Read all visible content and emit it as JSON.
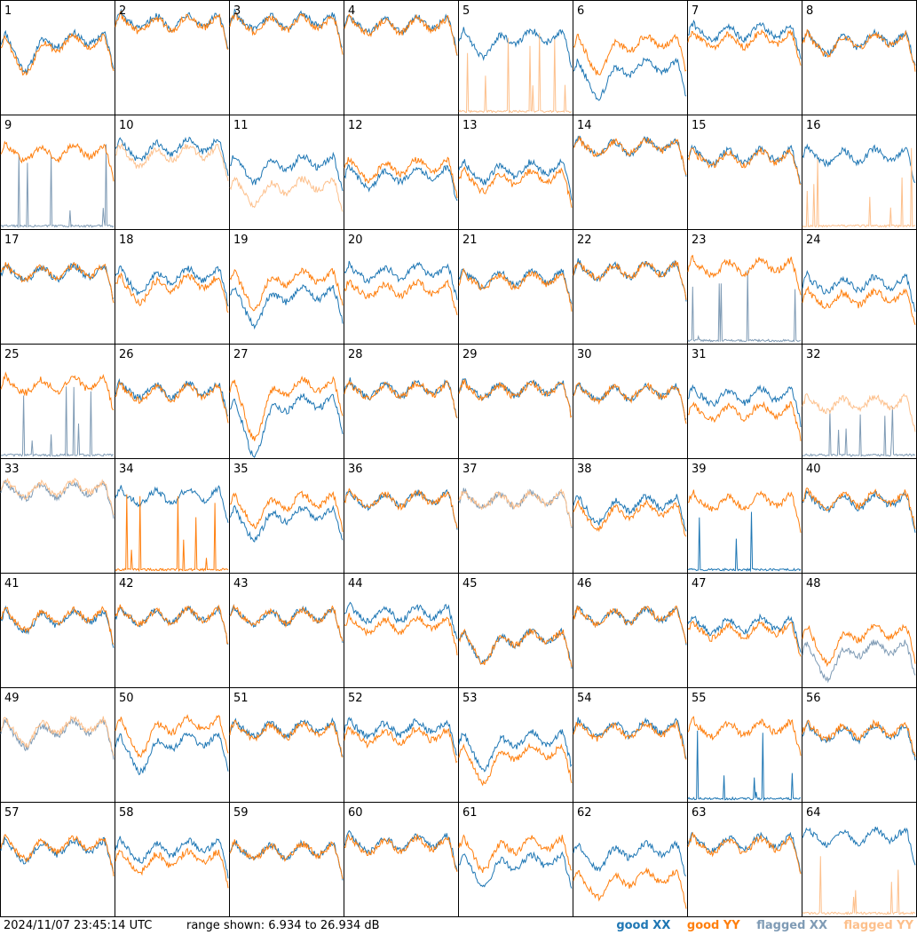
{
  "footer": {
    "timestamp": "2024/11/07 23:45:14 UTC",
    "range_text": "range shown: 6.934 to 26.934 dB"
  },
  "legend": [
    {
      "key": "good_xx",
      "label": "good XX",
      "color": "#1f77b4"
    },
    {
      "key": "good_yy",
      "label": "good YY",
      "color": "#ff7f0e"
    },
    {
      "key": "flagged_xx",
      "label": "flagged XX",
      "color": "#7f9bb5"
    },
    {
      "key": "flagged_yy",
      "label": "flagged YY",
      "color": "#fdc08c"
    }
  ],
  "chart_data": {
    "type": "line",
    "layout": "8x8 small multiples, one panel per antenna",
    "grid": false,
    "ylim": [
      6.934,
      26.934
    ],
    "yunits": "dB",
    "panels": [
      {
        "id": "1",
        "xx": "good",
        "yy": "good",
        "xx_level": 0.63,
        "yy_level": 0.6,
        "dip": 0.2
      },
      {
        "id": "2",
        "xx": "good",
        "yy": "good",
        "xx_level": 0.8,
        "yy_level": 0.78,
        "dip": 0.0
      },
      {
        "id": "3",
        "xx": "good",
        "yy": "good",
        "xx_level": 0.8,
        "yy_level": 0.78,
        "dip": 0.0
      },
      {
        "id": "4",
        "xx": "good",
        "yy": "good",
        "xx_level": 0.77,
        "yy_level": 0.76,
        "dip": 0.0
      },
      {
        "id": "5",
        "xx": "good",
        "yy": "flagged",
        "xx_level": 0.65,
        "yy_level": 0.05,
        "dip": 0.1
      },
      {
        "id": "6",
        "xx": "good",
        "yy": "good",
        "xx_level": 0.38,
        "yy_level": 0.6,
        "dip": 0.2
      },
      {
        "id": "7",
        "xx": "good",
        "yy": "good",
        "xx_level": 0.7,
        "yy_level": 0.63,
        "dip": 0.0
      },
      {
        "id": "8",
        "xx": "good",
        "yy": "good",
        "xx_level": 0.63,
        "yy_level": 0.62,
        "dip": 0.05
      },
      {
        "id": "9",
        "xx": "flagged",
        "yy": "good",
        "xx_level": 0.1,
        "yy_level": 0.65,
        "dip": 0.0
      },
      {
        "id": "10",
        "xx": "good",
        "yy": "flagged",
        "xx_level": 0.7,
        "yy_level": 0.64,
        "dip": 0.05
      },
      {
        "id": "11",
        "xx": "good",
        "yy": "flagged",
        "xx_level": 0.55,
        "yy_level": 0.35,
        "dip": 0.1
      },
      {
        "id": "12",
        "xx": "good",
        "yy": "good",
        "xx_level": 0.45,
        "yy_level": 0.52,
        "dip": 0.05
      },
      {
        "id": "13",
        "xx": "good",
        "yy": "good",
        "xx_level": 0.5,
        "yy_level": 0.42,
        "dip": 0.05
      },
      {
        "id": "14",
        "xx": "good",
        "yy": "good",
        "xx_level": 0.7,
        "yy_level": 0.7,
        "dip": 0.0
      },
      {
        "id": "15",
        "xx": "good",
        "yy": "good",
        "xx_level": 0.62,
        "yy_level": 0.6,
        "dip": 0.0
      },
      {
        "id": "16",
        "xx": "good",
        "yy": "flagged",
        "xx_level": 0.62,
        "yy_level": 0.05,
        "dip": 0.0
      },
      {
        "id": "17",
        "xx": "good",
        "yy": "good",
        "xx_level": 0.6,
        "yy_level": 0.6,
        "dip": 0.0
      },
      {
        "id": "18",
        "xx": "good",
        "yy": "good",
        "xx_level": 0.57,
        "yy_level": 0.5,
        "dip": 0.1
      },
      {
        "id": "19",
        "xx": "good",
        "yy": "good",
        "xx_level": 0.4,
        "yy_level": 0.55,
        "dip": 0.2
      },
      {
        "id": "20",
        "xx": "good",
        "yy": "good",
        "xx_level": 0.6,
        "yy_level": 0.45,
        "dip": 0.0
      },
      {
        "id": "21",
        "xx": "good",
        "yy": "good",
        "xx_level": 0.55,
        "yy_level": 0.53,
        "dip": 0.0
      },
      {
        "id": "22",
        "xx": "good",
        "yy": "good",
        "xx_level": 0.62,
        "yy_level": 0.62,
        "dip": 0.0
      },
      {
        "id": "23",
        "xx": "flagged",
        "yy": "good",
        "xx_level": 0.1,
        "yy_level": 0.65,
        "dip": 0.0
      },
      {
        "id": "24",
        "xx": "good",
        "yy": "good",
        "xx_level": 0.5,
        "yy_level": 0.37,
        "dip": 0.0
      },
      {
        "id": "25",
        "xx": "flagged",
        "yy": "good",
        "xx_level": 0.05,
        "yy_level": 0.62,
        "dip": 0.0
      },
      {
        "id": "26",
        "xx": "good",
        "yy": "good",
        "xx_level": 0.57,
        "yy_level": 0.55,
        "dip": 0.0
      },
      {
        "id": "27",
        "xx": "good",
        "yy": "good",
        "xx_level": 0.45,
        "yy_level": 0.6,
        "dip": 0.4
      },
      {
        "id": "28",
        "xx": "good",
        "yy": "good",
        "xx_level": 0.58,
        "yy_level": 0.57,
        "dip": 0.0
      },
      {
        "id": "29",
        "xx": "good",
        "yy": "good",
        "xx_level": 0.58,
        "yy_level": 0.57,
        "dip": 0.0
      },
      {
        "id": "30",
        "xx": "good",
        "yy": "good",
        "xx_level": 0.55,
        "yy_level": 0.55,
        "dip": 0.0
      },
      {
        "id": "31",
        "xx": "good",
        "yy": "good",
        "xx_level": 0.52,
        "yy_level": 0.38,
        "dip": 0.0
      },
      {
        "id": "32",
        "xx": "flagged",
        "yy": "flagged",
        "xx_level": 0.03,
        "yy_level": 0.45,
        "dip": 0.0
      },
      {
        "id": "33",
        "xx": "flagged",
        "yy": "flagged",
        "xx_level": 0.7,
        "yy_level": 0.72,
        "dip": 0.0
      },
      {
        "id": "34",
        "xx": "good",
        "yy": "good",
        "xx_level": 0.65,
        "yy_level": 0.05,
        "dip": 0.0
      },
      {
        "id": "35",
        "xx": "good",
        "yy": "good",
        "xx_level": 0.48,
        "yy_level": 0.6,
        "dip": 0.15
      },
      {
        "id": "36",
        "xx": "good",
        "yy": "good",
        "xx_level": 0.62,
        "yy_level": 0.62,
        "dip": 0.0
      },
      {
        "id": "37",
        "xx": "flagged",
        "yy": "flagged",
        "xx_level": 0.62,
        "yy_level": 0.62,
        "dip": 0.0
      },
      {
        "id": "38",
        "xx": "good",
        "yy": "good",
        "xx_level": 0.58,
        "yy_level": 0.52,
        "dip": 0.1
      },
      {
        "id": "39",
        "xx": "good",
        "yy": "good",
        "xx_level": 0.05,
        "yy_level": 0.6,
        "dip": 0.0
      },
      {
        "id": "40",
        "xx": "good",
        "yy": "good",
        "xx_level": 0.6,
        "yy_level": 0.62,
        "dip": 0.0
      },
      {
        "id": "41",
        "xx": "good",
        "yy": "good",
        "xx_level": 0.58,
        "yy_level": 0.6,
        "dip": 0.05
      },
      {
        "id": "42",
        "xx": "good",
        "yy": "good",
        "xx_level": 0.6,
        "yy_level": 0.6,
        "dip": 0.0
      },
      {
        "id": "43",
        "xx": "good",
        "yy": "good",
        "xx_level": 0.6,
        "yy_level": 0.6,
        "dip": 0.0
      },
      {
        "id": "44",
        "xx": "good",
        "yy": "good",
        "xx_level": 0.62,
        "yy_level": 0.52,
        "dip": 0.0
      },
      {
        "id": "45",
        "xx": "good",
        "yy": "good",
        "xx_level": 0.4,
        "yy_level": 0.4,
        "dip": 0.15
      },
      {
        "id": "46",
        "xx": "good",
        "yy": "good",
        "xx_level": 0.6,
        "yy_level": 0.6,
        "dip": 0.0
      },
      {
        "id": "47",
        "xx": "good",
        "yy": "good",
        "xx_level": 0.52,
        "yy_level": 0.47,
        "dip": 0.0
      },
      {
        "id": "48",
        "xx": "flagged",
        "yy": "good",
        "xx_level": 0.3,
        "yy_level": 0.45,
        "dip": 0.2
      },
      {
        "id": "49",
        "xx": "flagged",
        "yy": "flagged",
        "xx_level": 0.62,
        "yy_level": 0.64,
        "dip": 0.1
      },
      {
        "id": "50",
        "xx": "good",
        "yy": "good",
        "xx_level": 0.5,
        "yy_level": 0.65,
        "dip": 0.2
      },
      {
        "id": "51",
        "xx": "good",
        "yy": "good",
        "xx_level": 0.62,
        "yy_level": 0.6,
        "dip": 0.0
      },
      {
        "id": "52",
        "xx": "good",
        "yy": "good",
        "xx_level": 0.62,
        "yy_level": 0.55,
        "dip": 0.0
      },
      {
        "id": "53",
        "xx": "good",
        "yy": "good",
        "xx_level": 0.52,
        "yy_level": 0.4,
        "dip": 0.2
      },
      {
        "id": "54",
        "xx": "good",
        "yy": "good",
        "xx_level": 0.62,
        "yy_level": 0.6,
        "dip": 0.0
      },
      {
        "id": "55",
        "xx": "good",
        "yy": "good",
        "xx_level": 0.05,
        "yy_level": 0.62,
        "dip": 0.0
      },
      {
        "id": "56",
        "xx": "good",
        "yy": "good",
        "xx_level": 0.58,
        "yy_level": 0.6,
        "dip": 0.0
      },
      {
        "id": "57",
        "xx": "good",
        "yy": "good",
        "xx_level": 0.58,
        "yy_level": 0.6,
        "dip": 0.05
      },
      {
        "id": "58",
        "xx": "good",
        "yy": "good",
        "xx_level": 0.58,
        "yy_level": 0.48,
        "dip": 0.05
      },
      {
        "id": "59",
        "xx": "good",
        "yy": "good",
        "xx_level": 0.55,
        "yy_level": 0.55,
        "dip": 0.0
      },
      {
        "id": "60",
        "xx": "good",
        "yy": "good",
        "xx_level": 0.62,
        "yy_level": 0.6,
        "dip": 0.0
      },
      {
        "id": "61",
        "xx": "good",
        "yy": "good",
        "xx_level": 0.45,
        "yy_level": 0.6,
        "dip": 0.15
      },
      {
        "id": "62",
        "xx": "good",
        "yy": "good",
        "xx_level": 0.55,
        "yy_level": 0.3,
        "dip": 0.1
      },
      {
        "id": "63",
        "xx": "good",
        "yy": "good",
        "xx_level": 0.62,
        "yy_level": 0.6,
        "dip": 0.0
      },
      {
        "id": "64",
        "xx": "good",
        "yy": "flagged",
        "xx_level": 0.68,
        "yy_level": 0.05,
        "dip": 0.0
      }
    ]
  }
}
